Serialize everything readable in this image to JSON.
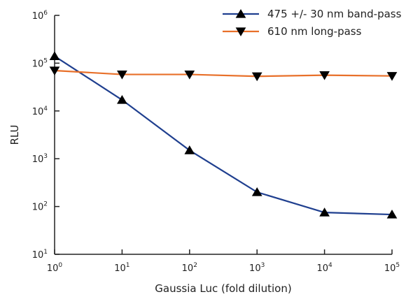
{
  "chart_data": {
    "type": "line",
    "title": "",
    "xlabel": "Gaussia Luc (fold dilution)",
    "ylabel": "RLU",
    "x_scale": "log",
    "y_scale": "log",
    "xlim": [
      1,
      100000
    ],
    "ylim": [
      10,
      1000000
    ],
    "x_ticks": [
      {
        "base": "10",
        "exp": "0",
        "value": 1
      },
      {
        "base": "10",
        "exp": "1",
        "value": 10
      },
      {
        "base": "10",
        "exp": "2",
        "value": 100
      },
      {
        "base": "10",
        "exp": "3",
        "value": 1000
      },
      {
        "base": "10",
        "exp": "4",
        "value": 10000
      },
      {
        "base": "10",
        "exp": "5",
        "value": 100000
      }
    ],
    "y_ticks": [
      {
        "base": "10",
        "exp": "1",
        "value": 10
      },
      {
        "base": "10",
        "exp": "2",
        "value": 100
      },
      {
        "base": "10",
        "exp": "3",
        "value": 1000
      },
      {
        "base": "10",
        "exp": "4",
        "value": 10000
      },
      {
        "base": "10",
        "exp": "5",
        "value": 100000
      },
      {
        "base": "10",
        "exp": "6",
        "value": 1000000
      }
    ],
    "grid": false,
    "legend_position": "top-right",
    "series": [
      {
        "name": "475 +/- 30 nm band-pass",
        "color": "#1f3f8f",
        "marker": "triangle-up",
        "x": [
          1,
          10,
          100,
          1000,
          10000,
          100000
        ],
        "y": [
          140000,
          17000,
          1500,
          200,
          75,
          68
        ]
      },
      {
        "name": "610 nm long-pass",
        "color": "#e8702a",
        "marker": "triangle-down",
        "x": [
          1,
          10,
          100,
          1000,
          10000,
          100000
        ],
        "y": [
          70000,
          58000,
          58000,
          53000,
          56000,
          54000
        ]
      }
    ]
  }
}
